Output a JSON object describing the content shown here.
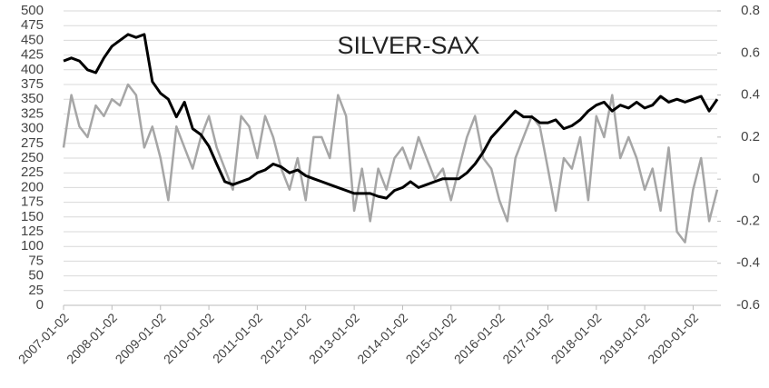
{
  "chart_data": {
    "type": "line",
    "title": "SILVER-SAX",
    "x": [
      "2007-01-02",
      "2007-03-02",
      "2007-05-02",
      "2007-07-02",
      "2007-09-02",
      "2007-11-02",
      "2008-01-02",
      "2008-03-02",
      "2008-05-02",
      "2008-07-02",
      "2008-09-02",
      "2008-11-02",
      "2009-01-02",
      "2009-03-02",
      "2009-05-02",
      "2009-07-02",
      "2009-09-02",
      "2009-11-02",
      "2010-01-02",
      "2010-03-02",
      "2010-05-02",
      "2010-07-02",
      "2010-09-02",
      "2010-11-02",
      "2011-01-02",
      "2011-03-02",
      "2011-05-02",
      "2011-07-02",
      "2011-09-02",
      "2011-11-02",
      "2012-01-02",
      "2012-03-02",
      "2012-05-02",
      "2012-07-02",
      "2012-09-02",
      "2012-11-02",
      "2013-01-02",
      "2013-03-02",
      "2013-05-02",
      "2013-07-02",
      "2013-09-02",
      "2013-11-02",
      "2014-01-02",
      "2014-03-02",
      "2014-05-02",
      "2014-07-02",
      "2014-09-02",
      "2014-11-02",
      "2015-01-02",
      "2015-03-02",
      "2015-05-02",
      "2015-07-02",
      "2015-09-02",
      "2015-11-02",
      "2016-01-02",
      "2016-03-02",
      "2016-05-02",
      "2016-07-02",
      "2016-09-02",
      "2016-11-02",
      "2017-01-02",
      "2017-03-02",
      "2017-05-02",
      "2017-07-02",
      "2017-09-02",
      "2017-11-02",
      "2018-01-02",
      "2018-03-02",
      "2018-05-02",
      "2018-07-02",
      "2018-09-02",
      "2018-11-02",
      "2019-01-02",
      "2019-03-02",
      "2019-05-02",
      "2019-07-02",
      "2019-09-02",
      "2019-11-02",
      "2020-01-02",
      "2020-03-02",
      "2020-05-02",
      "2020-07-02"
    ],
    "series": [
      {
        "color": "#000000",
        "axis": "y",
        "values": [
          415,
          420,
          415,
          400,
          395,
          420,
          440,
          450,
          460,
          455,
          460,
          380,
          360,
          350,
          320,
          345,
          300,
          290,
          270,
          240,
          210,
          205,
          210,
          215,
          225,
          230,
          240,
          235,
          225,
          230,
          220,
          215,
          210,
          205,
          200,
          195,
          190,
          190,
          190,
          185,
          182,
          195,
          200,
          210,
          200,
          205,
          210,
          215,
          215,
          215,
          225,
          240,
          260,
          285,
          300,
          315,
          330,
          320,
          320,
          310,
          310,
          315,
          300,
          305,
          315,
          330,
          340,
          345,
          330,
          340,
          335,
          345,
          335,
          340,
          355,
          345,
          350,
          345,
          350,
          355,
          330,
          350
        ]
      },
      {
        "color": "#a6a6a6",
        "axis": "y2",
        "values": [
          0.15,
          0.4,
          0.25,
          0.2,
          0.35,
          0.3,
          0.38,
          0.35,
          0.45,
          0.4,
          0.15,
          0.25,
          0.1,
          -0.1,
          0.25,
          0.15,
          0.05,
          0.2,
          0.3,
          0.15,
          0.05,
          -0.05,
          0.3,
          0.25,
          0.1,
          0.3,
          0.2,
          0.05,
          -0.05,
          0.1,
          -0.1,
          0.2,
          0.2,
          0.1,
          0.4,
          0.3,
          -0.15,
          0.05,
          -0.2,
          0.05,
          -0.05,
          0.1,
          0.15,
          0.05,
          0.2,
          0.1,
          0.0,
          0.05,
          -0.1,
          0.05,
          0.2,
          0.3,
          0.1,
          0.05,
          -0.1,
          -0.2,
          0.1,
          0.2,
          0.3,
          0.25,
          0.05,
          -0.15,
          0.1,
          0.05,
          0.2,
          -0.1,
          0.3,
          0.2,
          0.4,
          0.1,
          0.2,
          0.1,
          -0.05,
          0.05,
          -0.15,
          0.15,
          -0.25,
          -0.3,
          -0.05,
          0.1,
          -0.2,
          -0.05
        ]
      }
    ],
    "xlim": [
      "2007-01-02",
      "2020-07-02"
    ],
    "xticks": [
      "2007-01-02",
      "2008-01-02",
      "2009-01-02",
      "2010-01-02",
      "2011-01-02",
      "2012-01-02",
      "2013-01-02",
      "2014-01-02",
      "2015-01-02",
      "2016-01-02",
      "2017-01-02",
      "2018-01-02",
      "2019-01-02",
      "2020-01-02"
    ],
    "ylim": [
      0,
      500
    ],
    "yticks": [
      0,
      25,
      50,
      75,
      100,
      125,
      150,
      175,
      200,
      225,
      250,
      275,
      300,
      325,
      350,
      375,
      400,
      425,
      450,
      475,
      500
    ],
    "y2lim": [
      -0.6,
      0.8
    ],
    "y2ticks": [
      -0.6,
      -0.4,
      -0.2,
      0,
      0.2,
      0.4,
      0.6,
      0.8
    ],
    "grid": true
  }
}
